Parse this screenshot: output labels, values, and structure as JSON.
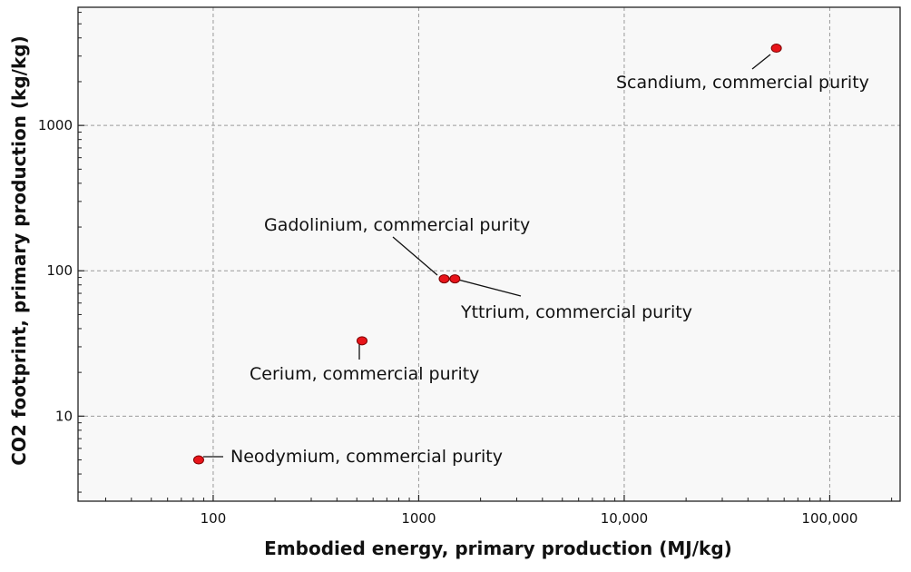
{
  "chart_data": {
    "type": "scatter",
    "xlabel": "Embodied energy, primary production (MJ/kg)",
    "ylabel": "CO2 footprint, primary production (kg/kg)",
    "x_scale": "log",
    "y_scale": "log",
    "xlim": [
      22,
      220000
    ],
    "ylim": [
      2.6,
      6500
    ],
    "x_ticks": [
      {
        "value": 100,
        "label": "100"
      },
      {
        "value": 1000,
        "label": "1000"
      },
      {
        "value": 10000,
        "label": "10,000"
      },
      {
        "value": 100000,
        "label": "100,000"
      }
    ],
    "y_ticks": [
      {
        "value": 10,
        "label": "10"
      },
      {
        "value": 100,
        "label": "100"
      },
      {
        "value": 1000,
        "label": "1000"
      }
    ],
    "grid": true,
    "legend": "none",
    "marker_color": "#e8141a",
    "background_color": "#f8f8f8",
    "points": [
      {
        "label": "Scandium, commercial purity",
        "x": 55000,
        "y": 3400
      },
      {
        "label": "Gadolinium, commercial purity",
        "x": 1330,
        "y": 88
      },
      {
        "label": "Yttrium, commercial purity",
        "x": 1500,
        "y": 88
      },
      {
        "label": "Cerium, commercial purity",
        "x": 530,
        "y": 33
      },
      {
        "label": "Neodymium, commercial purity",
        "x": 85,
        "y": 5
      }
    ]
  }
}
